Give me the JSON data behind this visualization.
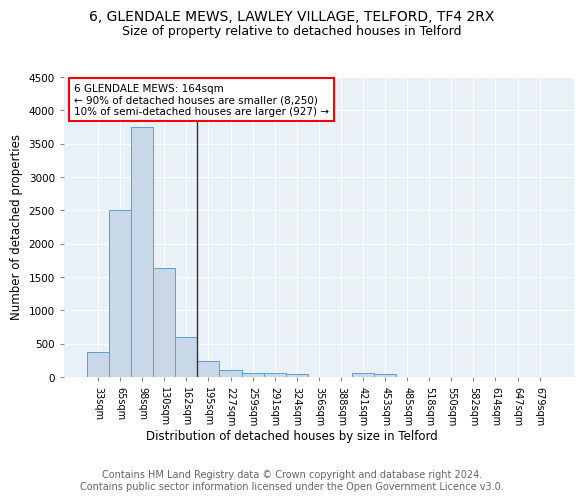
{
  "title": "6, GLENDALE MEWS, LAWLEY VILLAGE, TELFORD, TF4 2RX",
  "subtitle": "Size of property relative to detached houses in Telford",
  "xlabel": "Distribution of detached houses by size in Telford",
  "ylabel": "Number of detached properties",
  "categories": [
    "33sqm",
    "65sqm",
    "98sqm",
    "130sqm",
    "162sqm",
    "195sqm",
    "227sqm",
    "259sqm",
    "291sqm",
    "324sqm",
    "356sqm",
    "388sqm",
    "421sqm",
    "453sqm",
    "485sqm",
    "518sqm",
    "550sqm",
    "582sqm",
    "614sqm",
    "647sqm",
    "679sqm"
  ],
  "values": [
    370,
    2500,
    3750,
    1630,
    600,
    240,
    110,
    60,
    55,
    45,
    0,
    0,
    60,
    50,
    0,
    0,
    0,
    0,
    0,
    0,
    0
  ],
  "bar_color": "#c8d8e8",
  "bar_edge_color": "#5a9fd4",
  "vline_color": "#333333",
  "vline_pos": 4.5,
  "annotation_line1": "6 GLENDALE MEWS: 164sqm",
  "annotation_line2": "← 90% of detached houses are smaller (8,250)",
  "annotation_line3": "10% of semi-detached houses are larger (927) →",
  "annotation_box_color": "white",
  "annotation_box_edge": "red",
  "ylim": [
    0,
    4500
  ],
  "yticks": [
    0,
    500,
    1000,
    1500,
    2000,
    2500,
    3000,
    3500,
    4000,
    4500
  ],
  "background_color": "#e8f0f8",
  "footer": "Contains HM Land Registry data © Crown copyright and database right 2024.\nContains public sector information licensed under the Open Government Licence v3.0.",
  "title_fontsize": 10,
  "subtitle_fontsize": 9,
  "xlabel_fontsize": 8.5,
  "ylabel_fontsize": 8.5,
  "annotation_fontsize": 7.5,
  "footer_fontsize": 7
}
